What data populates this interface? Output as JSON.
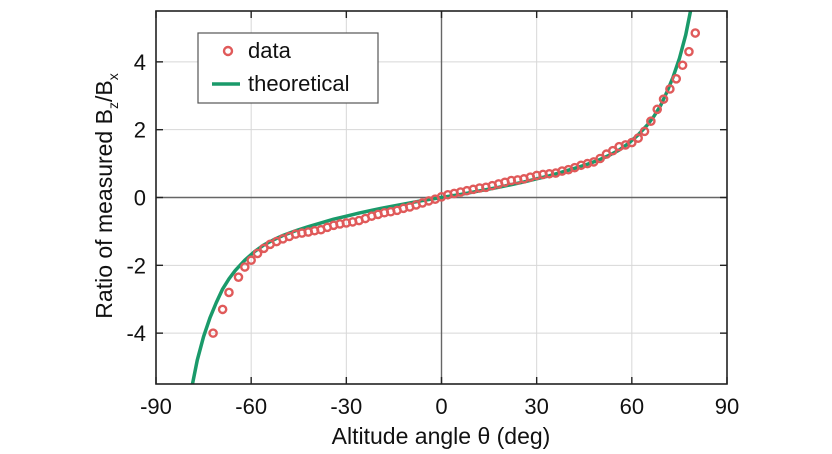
{
  "chart_data": {
    "type": "scatter",
    "xlabel": "Altitude angle θ (deg)",
    "ylabel_parts": [
      "Ratio of measured B",
      "z",
      "/B",
      "x"
    ],
    "xlim": [
      -90,
      90
    ],
    "ylim": [
      -5.5,
      5.5
    ],
    "xticks": [
      -90,
      -60,
      -30,
      0,
      30,
      60,
      90
    ],
    "yticks": [
      -4,
      -2,
      0,
      2,
      4
    ],
    "xtick_labels": [
      "-90",
      "-60",
      "-30",
      "0",
      "30",
      "60",
      "90"
    ],
    "ytick_labels": [
      "-4",
      "-2",
      "0",
      "2",
      "4"
    ],
    "grid": true,
    "legend_position": "top-left",
    "series": [
      {
        "name": "data",
        "kind": "points",
        "color": "#e05a5a",
        "x": [
          -72,
          -69,
          -67,
          -64,
          -62,
          -60,
          -58,
          -56,
          -54,
          -52,
          -50,
          -48,
          -46,
          -44,
          -42,
          -40,
          -38,
          -36,
          -34,
          -32,
          -30,
          -28,
          -26,
          -24,
          -22,
          -20,
          -18,
          -16,
          -14,
          -12,
          -10,
          -8,
          -6,
          -4,
          -2,
          0,
          2,
          4,
          6,
          8,
          10,
          12,
          14,
          16,
          18,
          20,
          22,
          24,
          26,
          28,
          30,
          32,
          34,
          36,
          38,
          40,
          42,
          44,
          46,
          48,
          50,
          52,
          54,
          56,
          58,
          60,
          62,
          64,
          66,
          68,
          70,
          72,
          74,
          76,
          78,
          80
        ],
        "y": [
          -4.0,
          -3.3,
          -2.8,
          -2.35,
          -2.05,
          -1.85,
          -1.65,
          -1.5,
          -1.38,
          -1.3,
          -1.22,
          -1.15,
          -1.08,
          -1.05,
          -1.02,
          -0.98,
          -0.95,
          -0.88,
          -0.82,
          -0.78,
          -0.75,
          -0.72,
          -0.68,
          -0.62,
          -0.55,
          -0.5,
          -0.45,
          -0.42,
          -0.38,
          -0.32,
          -0.28,
          -0.22,
          -0.16,
          -0.1,
          -0.05,
          0.02,
          0.08,
          0.12,
          0.16,
          0.2,
          0.24,
          0.28,
          0.3,
          0.35,
          0.4,
          0.45,
          0.5,
          0.52,
          0.55,
          0.6,
          0.65,
          0.68,
          0.7,
          0.72,
          0.78,
          0.82,
          0.88,
          0.95,
          1.0,
          1.05,
          1.15,
          1.28,
          1.38,
          1.5,
          1.55,
          1.62,
          1.75,
          1.95,
          2.25,
          2.6,
          2.9,
          3.2,
          3.5,
          3.9,
          4.3,
          4.85
        ]
      },
      {
        "name": "theoretical",
        "kind": "line",
        "color": "#1a9a6a",
        "function": "y = 2*tan(θ)/… approx",
        "x": [
          -78.5,
          -77,
          -75,
          -73,
          -71,
          -69,
          -67,
          -65,
          -62,
          -59,
          -56,
          -53,
          -50,
          -46,
          -42,
          -38,
          -34,
          -30,
          -26,
          -22,
          -18,
          -14,
          -10,
          -6,
          -2,
          0,
          2,
          6,
          10,
          14,
          18,
          22,
          26,
          30,
          34,
          38,
          42,
          46,
          50,
          53,
          56,
          59,
          62,
          65,
          67,
          69,
          71,
          73,
          75,
          77,
          78.5
        ],
        "y": [
          -5.5,
          -4.8,
          -4.1,
          -3.55,
          -3.1,
          -2.7,
          -2.4,
          -2.15,
          -1.85,
          -1.6,
          -1.4,
          -1.25,
          -1.12,
          -0.98,
          -0.86,
          -0.75,
          -0.64,
          -0.55,
          -0.46,
          -0.38,
          -0.3,
          -0.23,
          -0.16,
          -0.09,
          -0.03,
          0.0,
          0.03,
          0.09,
          0.16,
          0.23,
          0.3,
          0.38,
          0.46,
          0.55,
          0.64,
          0.75,
          0.86,
          0.98,
          1.12,
          1.25,
          1.4,
          1.6,
          1.85,
          2.15,
          2.4,
          2.7,
          3.1,
          3.55,
          4.1,
          4.8,
          5.5
        ]
      }
    ]
  }
}
